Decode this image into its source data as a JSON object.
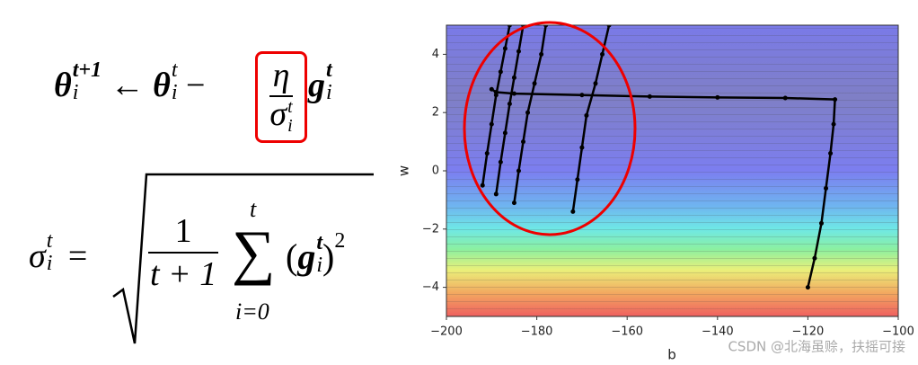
{
  "formulas": {
    "update": [
      "θ",
      "t+1",
      "i",
      "←",
      "θ",
      "t",
      "i",
      "−",
      "η",
      "σ",
      "t",
      "i",
      "g",
      "t",
      "i"
    ],
    "sigma": [
      "σ",
      "t",
      "i",
      "=",
      "1",
      "t + 1",
      "∑",
      "t",
      "i=0",
      "(",
      "g",
      "t",
      "i",
      ")",
      "2"
    ]
  },
  "chart_data": {
    "type": "line",
    "x_label": "b",
    "y_label": "w",
    "xlim": [
      -200,
      -100
    ],
    "ylim": [
      -5,
      5
    ],
    "xticks": [
      {
        "value": -200,
        "label": "−200"
      },
      {
        "value": -180,
        "label": "−180"
      },
      {
        "value": -160,
        "label": "−160"
      },
      {
        "value": -140,
        "label": "−140"
      },
      {
        "value": -120,
        "label": "−120"
      },
      {
        "value": -100,
        "label": "−100"
      }
    ],
    "yticks": [
      {
        "value": -4,
        "label": "−4"
      },
      {
        "value": -2,
        "label": "−2"
      },
      0,
      2,
      4
    ],
    "series": [
      {
        "color": "#000000",
        "x": [
          -120,
          -118.5,
          -117,
          -116,
          -115,
          -114.3,
          -114,
          -125,
          -140,
          -155,
          -170,
          -185,
          -189,
          -190
        ],
        "y": [
          -4,
          -3,
          -1.8,
          -0.6,
          0.6,
          1.6,
          2.45,
          2.5,
          2.52,
          2.55,
          2.6,
          2.65,
          2.7,
          2.8
        ]
      },
      {
        "color": "#000000",
        "x": [
          -192,
          -191,
          -190,
          -189,
          -188,
          -187,
          -186
        ],
        "y": [
          -0.5,
          0.6,
          1.6,
          2.6,
          3.4,
          4.2,
          5
        ]
      },
      {
        "color": "#000000",
        "x": [
          -189,
          -188,
          -187,
          -186,
          -185,
          -184,
          -183
        ],
        "y": [
          -0.8,
          0.3,
          1.3,
          2.3,
          3.2,
          4.1,
          5
        ]
      },
      {
        "color": "#000000",
        "x": [
          -185,
          -184,
          -183,
          -182,
          -180.5,
          -179,
          -178
        ],
        "y": [
          -1.1,
          0,
          1,
          2,
          3,
          4,
          5
        ]
      },
      {
        "color": "#000000",
        "x": [
          -172,
          -171,
          -170,
          -169,
          -167,
          -165.5,
          -164
        ],
        "y": [
          -1.4,
          -0.3,
          0.8,
          1.9,
          3,
          4,
          5
        ]
      }
    ]
  },
  "watermark": "CSDN @北海虽赊，扶摇可接"
}
